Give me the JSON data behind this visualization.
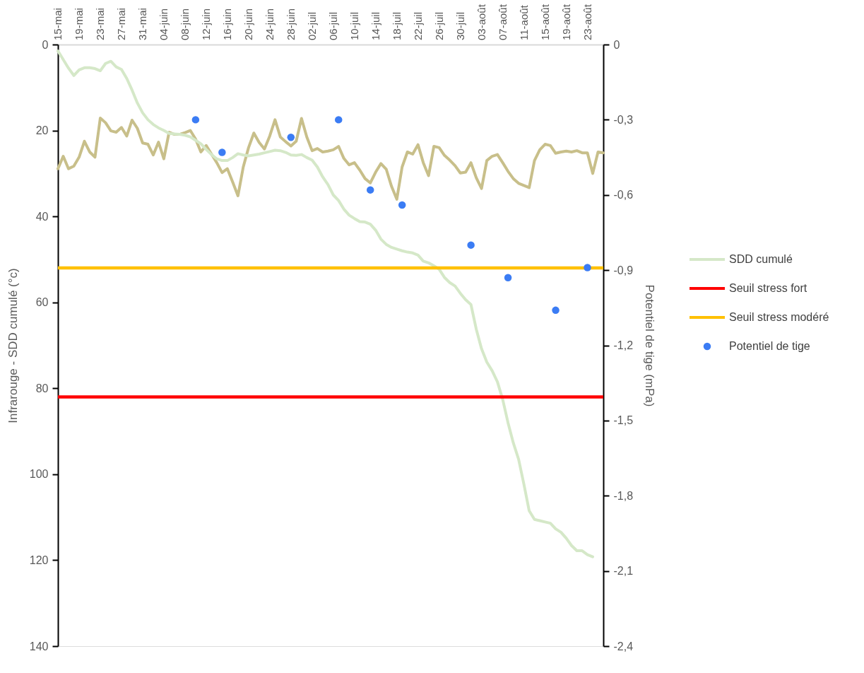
{
  "chart_data": {
    "type": "line",
    "xlabel": null,
    "ylabel": "Infrarouge - SDD cumulé (°c)",
    "y2label": "Potentiel de tige (mPa)",
    "categories": [
      "15-mai",
      null,
      null,
      null,
      "19-mai",
      null,
      null,
      null,
      "23-mai",
      null,
      null,
      null,
      "27-mai",
      null,
      null,
      null,
      "31-mai",
      null,
      null,
      null,
      "04-juin",
      null,
      null,
      null,
      "08-juin",
      null,
      null,
      null,
      "12-juin",
      null,
      null,
      null,
      "16-juin",
      null,
      null,
      null,
      "20-juin",
      null,
      null,
      null,
      "24-juin",
      null,
      null,
      null,
      "28-juin",
      null,
      null,
      null,
      "02-juil",
      null,
      null,
      null,
      "06-juil",
      null,
      null,
      null,
      "10-juil",
      null,
      null,
      null,
      "14-juil",
      null,
      null,
      null,
      "18-juil",
      null,
      null,
      null,
      "22-juil",
      null,
      null,
      null,
      "26-juil",
      null,
      null,
      null,
      "30-juil",
      null,
      null,
      null,
      "03-août",
      null,
      null,
      null,
      "07-août",
      null,
      null,
      null,
      "11-août",
      null,
      null,
      null,
      "15-août",
      null,
      null,
      null,
      "19-août",
      null,
      null,
      null,
      "23-août",
      null,
      null,
      null
    ],
    "ylim": [
      140,
      0
    ],
    "yticks": [
      0,
      20,
      40,
      60,
      80,
      100,
      120,
      140
    ],
    "y2lim": [
      -2.4,
      0
    ],
    "y2ticks": [
      0,
      {
        "value": -0.3,
        "label": "-0,3"
      },
      {
        "value": -0.6,
        "label": "-0,6"
      },
      {
        "value": -0.9,
        "label": "-0,9"
      },
      {
        "value": -1.2,
        "label": "-1,2"
      },
      {
        "value": -1.5,
        "label": "-1,5"
      },
      {
        "value": -1.8,
        "label": "-1,8"
      },
      {
        "value": -2.1,
        "label": "-2,1"
      },
      {
        "value": -2.4,
        "label": "-2,4"
      }
    ],
    "grid": false,
    "legend": "right",
    "line_style": "solid",
    "series": [
      {
        "color": "#c8bf8a",
        "values": [
          28.9,
          26,
          28.9,
          28.3,
          26.2,
          22.5,
          25,
          26.2,
          17.1,
          18.2,
          20.1,
          20.4,
          19.3,
          21.3,
          17.6,
          19.5,
          22.9,
          23.2,
          25.7,
          22.7,
          26.6,
          20.4,
          20.9,
          20.9,
          20.5,
          20,
          22,
          25,
          23.5,
          25.5,
          27.5,
          29.8,
          28.9,
          32,
          35.2,
          28.5,
          24,
          20.6,
          22.8,
          24.3,
          21.3,
          17.5,
          21.5,
          22.6,
          23.6,
          22.5,
          17.2,
          21.5,
          24.7,
          24.2,
          25,
          24.8,
          24.5,
          23.7,
          26.5,
          28,
          27.5,
          29.2,
          31.2,
          32.2,
          29.7,
          27.7,
          29,
          33,
          36,
          28.5,
          25,
          25.5,
          23.3,
          27.5,
          30.5,
          23.7,
          24,
          25.8,
          26.9,
          28.2,
          29.9,
          29.7,
          27.5,
          31,
          33.5,
          27,
          26,
          25.6,
          27.5,
          29.5,
          31.2,
          32.3,
          32.8,
          33.3,
          27,
          24.5,
          23.2,
          23.5,
          25.3,
          25,
          24.8,
          25,
          24.7,
          25.2,
          25.2,
          30,
          25,
          25.2
        ]
      },
      {
        "name": "SDD cumulé",
        "color": "#d5e8c8",
        "values": [
          1.5,
          3.5,
          5.5,
          7.2,
          5.9,
          5.4,
          5.4,
          5.6,
          6.1,
          4.4,
          3.9,
          5.2,
          5.8,
          7.9,
          10.6,
          13.6,
          15.9,
          17.5,
          18.6,
          19.4,
          20,
          20.7,
          20.8,
          20.9,
          21.1,
          21.5,
          22.3,
          23.1,
          24.4,
          25.6,
          26.6,
          27,
          27,
          26.3,
          25.4,
          25.7,
          25.9,
          25.7,
          25.5,
          25.2,
          24.9,
          24.6,
          24.7,
          25.1,
          25.7,
          25.8,
          25.6,
          26.3,
          26.9,
          28.5,
          30.8,
          32.6,
          35,
          36.3,
          38.3,
          39.7,
          40.5,
          41.2,
          41.3,
          41.8,
          43.2,
          45.3,
          46.5,
          47.2,
          47.6,
          48,
          48.3,
          48.5,
          49,
          50.4,
          50.8,
          51.5,
          52.3,
          54.2,
          55.4,
          56.2,
          57.9,
          59.4,
          60.5,
          66.2,
          70.8,
          73.9,
          75.9,
          78.5,
          82.6,
          88,
          92.7,
          96.5,
          102.3,
          108.5,
          110.5,
          110.8,
          111.1,
          111.4,
          112.7,
          113.5,
          114.9,
          116.6,
          117.8,
          117.8,
          118.7,
          119.2,
          null,
          null
        ]
      },
      {
        "type": "scatter",
        "name": "Potentiel de tige",
        "color": "#3b7cf4",
        "axis": "y2",
        "marker": "circle",
        "values": [
          null,
          null,
          null,
          null,
          null,
          null,
          null,
          null,
          null,
          null,
          null,
          null,
          null,
          null,
          null,
          null,
          null,
          null,
          null,
          null,
          null,
          null,
          null,
          null,
          null,
          null,
          -0.3,
          null,
          null,
          null,
          null,
          -0.43,
          null,
          null,
          null,
          null,
          null,
          null,
          null,
          null,
          null,
          null,
          null,
          null,
          -0.37,
          null,
          null,
          null,
          null,
          null,
          null,
          null,
          null,
          -0.3,
          null,
          null,
          null,
          null,
          null,
          -0.58,
          null,
          null,
          null,
          null,
          null,
          -0.64,
          null,
          null,
          null,
          null,
          null,
          null,
          null,
          null,
          null,
          null,
          null,
          null,
          -0.8,
          null,
          null,
          null,
          null,
          null,
          null,
          -0.93,
          null,
          null,
          null,
          null,
          null,
          null,
          null,
          null,
          -1.06,
          null,
          null,
          null,
          null,
          null,
          -0.89,
          null,
          null,
          null
        ]
      }
    ],
    "ref_lines": [
      {
        "axis": "y",
        "value": 82,
        "label": "Seuil stress fort",
        "color": "#ff0000"
      },
      {
        "axis": "y",
        "value": 52,
        "label": "Seuil stress modéré",
        "color": "#ffc000"
      }
    ]
  }
}
